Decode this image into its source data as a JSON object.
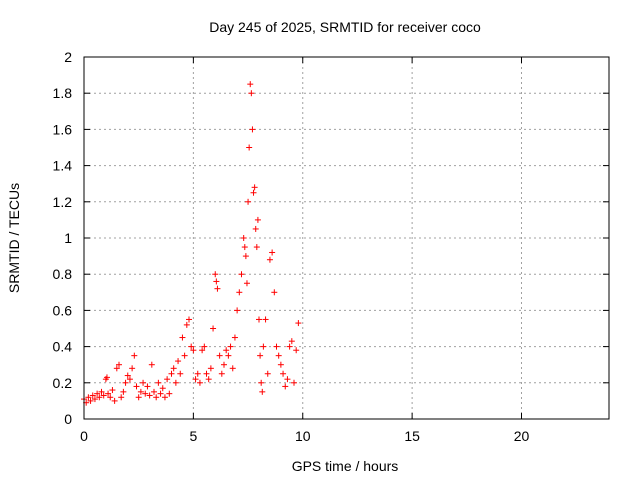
{
  "chart_data": {
    "type": "scatter",
    "title": "Day 245 of 2025, SRMTID for receiver coco",
    "xlabel": "GPS time / hours",
    "ylabel": "SRMTID / TECUs",
    "xlim": [
      0,
      24
    ],
    "ylim": [
      0,
      2
    ],
    "xticks": [
      0,
      5,
      10,
      15,
      20
    ],
    "xtick_labels": [
      "0",
      "5",
      "10",
      "15",
      "20"
    ],
    "yticks": [
      0,
      0.2,
      0.4,
      0.6,
      0.8,
      1,
      1.2,
      1.4,
      1.6,
      1.8,
      2
    ],
    "ytick_labels": [
      "0",
      "0.2",
      "0.4",
      "0.6",
      "0.8",
      "1",
      "1.2",
      "1.4",
      "1.6",
      "1.8",
      "2"
    ],
    "grid": true,
    "marker": "+",
    "color": "#ff0000",
    "series": [
      {
        "name": "SRMTID",
        "x": [
          0.0,
          0.1,
          0.2,
          0.3,
          0.4,
          0.5,
          0.6,
          0.7,
          0.8,
          0.9,
          1.0,
          1.05,
          1.1,
          1.2,
          1.3,
          1.4,
          1.5,
          1.6,
          1.7,
          1.8,
          1.9,
          2.0,
          2.1,
          2.2,
          2.3,
          2.4,
          2.5,
          2.6,
          2.7,
          2.8,
          2.9,
          3.0,
          3.1,
          3.2,
          3.3,
          3.4,
          3.5,
          3.6,
          3.7,
          3.8,
          3.9,
          4.0,
          4.1,
          4.2,
          4.3,
          4.4,
          4.5,
          4.6,
          4.7,
          4.8,
          4.9,
          5.0,
          5.1,
          5.2,
          5.3,
          5.4,
          5.5,
          5.6,
          5.7,
          5.8,
          5.9,
          6.0,
          6.05,
          6.1,
          6.2,
          6.3,
          6.4,
          6.5,
          6.6,
          6.7,
          6.8,
          6.9,
          7.0,
          7.1,
          7.2,
          7.3,
          7.35,
          7.4,
          7.45,
          7.5,
          7.55,
          7.6,
          7.65,
          7.7,
          7.75,
          7.8,
          7.85,
          7.9,
          7.95,
          8.0,
          8.05,
          8.1,
          8.15,
          8.2,
          8.3,
          8.4,
          8.5,
          8.6,
          8.7,
          8.8,
          8.9,
          9.0,
          9.1,
          9.2,
          9.3,
          9.4,
          9.5,
          9.6,
          9.7,
          9.8
        ],
        "y": [
          0.11,
          0.09,
          0.12,
          0.1,
          0.13,
          0.11,
          0.14,
          0.12,
          0.15,
          0.13,
          0.22,
          0.23,
          0.14,
          0.12,
          0.16,
          0.1,
          0.28,
          0.3,
          0.12,
          0.15,
          0.2,
          0.24,
          0.22,
          0.28,
          0.35,
          0.18,
          0.12,
          0.15,
          0.2,
          0.14,
          0.18,
          0.13,
          0.3,
          0.15,
          0.12,
          0.2,
          0.14,
          0.17,
          0.12,
          0.22,
          0.14,
          0.25,
          0.28,
          0.2,
          0.32,
          0.25,
          0.45,
          0.35,
          0.52,
          0.55,
          0.4,
          0.38,
          0.22,
          0.25,
          0.2,
          0.38,
          0.4,
          0.25,
          0.22,
          0.28,
          0.5,
          0.8,
          0.76,
          0.72,
          0.35,
          0.25,
          0.3,
          0.38,
          0.35,
          0.4,
          0.28,
          0.45,
          0.6,
          0.7,
          0.8,
          1.0,
          0.95,
          0.9,
          0.75,
          1.2,
          1.5,
          1.85,
          1.8,
          1.6,
          1.25,
          1.28,
          1.05,
          0.95,
          1.1,
          0.55,
          0.35,
          0.2,
          0.15,
          0.4,
          0.55,
          0.25,
          0.88,
          0.92,
          0.7,
          0.4,
          0.35,
          0.3,
          0.25,
          0.18,
          0.22,
          0.4,
          0.43,
          0.2,
          0.38,
          0.53
        ]
      }
    ]
  }
}
